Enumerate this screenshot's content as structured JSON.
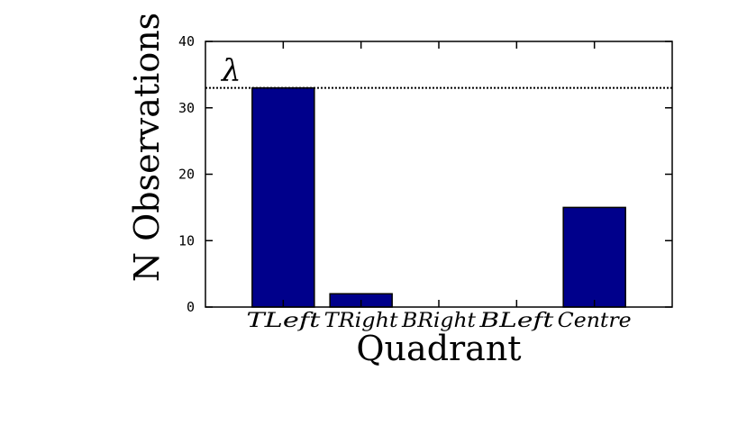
{
  "chart_data": {
    "type": "bar",
    "categories": [
      "TLeft",
      "TRight",
      "BRight",
      "BLeft",
      "Centre"
    ],
    "values": [
      33,
      2,
      0,
      0,
      15
    ],
    "title": "",
    "xlabel": "Quadrant",
    "ylabel": "N Observations",
    "ylim": [
      0,
      40
    ],
    "yticks": [
      0,
      10,
      20,
      30,
      40
    ],
    "grid": false,
    "reference_line": {
      "label": "λ",
      "value": 33,
      "style": "dotted"
    },
    "colors": {
      "bar_fill": "#00008b",
      "bar_stroke": "#000000"
    }
  }
}
